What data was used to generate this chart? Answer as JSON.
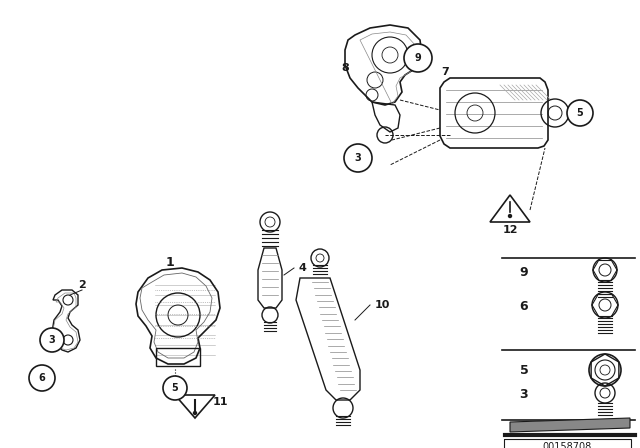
{
  "bg_color": "#ffffff",
  "fig_width": 6.4,
  "fig_height": 4.48,
  "dpi": 100,
  "line_color": "#1a1a1a",
  "text_color": "#1a1a1a",
  "diagram_id": "00158708"
}
